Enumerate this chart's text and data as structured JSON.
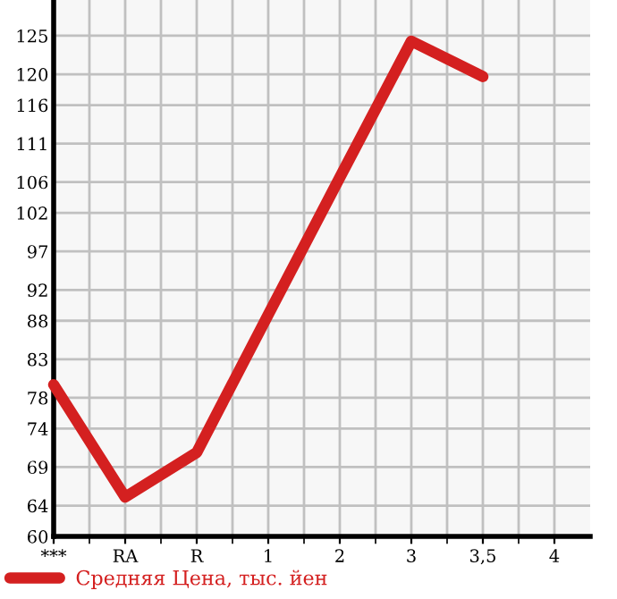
{
  "chart_data": {
    "type": "line",
    "categories": [
      "***",
      "RA",
      "R",
      "1",
      "2",
      "3",
      "3,5",
      "4"
    ],
    "series": [
      {
        "name": "Средняя Цена, тыс. йен",
        "color": "#d42020",
        "values": [
          79.7,
          65.1,
          70.9,
          88.8,
          106.6,
          124.3,
          119.7,
          null
        ]
      }
    ],
    "ylim": [
      60,
      129.64
    ],
    "yticks": [
      60,
      64,
      69,
      74,
      78,
      83,
      88,
      92,
      97,
      102,
      106,
      111,
      116,
      120,
      125
    ],
    "grid": true,
    "legend": "bottom",
    "marker": "none",
    "line_style": "solid"
  }
}
